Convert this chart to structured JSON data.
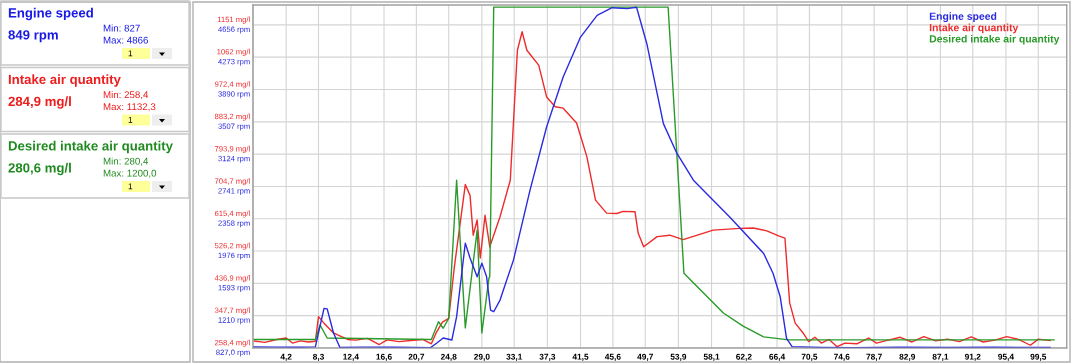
{
  "chart_data": [
    {
      "type": "other",
      "title": "Engine speed",
      "color": "#1a1ae6",
      "annotations": [
        "849 rpm",
        "Min: 827",
        "Max: 4866",
        "1"
      ]
    },
    {
      "type": "other",
      "title": "Intake air quantity",
      "color": "#ee1c1c",
      "annotations": [
        "284,9 mg/l",
        "Min: 258,4",
        "Max: 1132,3",
        "1"
      ]
    },
    {
      "type": "other",
      "title": "Desired intake air quantity",
      "color": "#1f8a1f",
      "annotations": [
        "280,6 mg/l",
        "Min: 280,4",
        "Max: 1200,0",
        "1"
      ]
    },
    {
      "type": "line",
      "legend": "top right",
      "grid": true,
      "xlim": [
        0,
        103.1
      ],
      "ylim": [
        258.4,
        1206
      ],
      "y2lim": [
        827,
        4893
      ],
      "xticks": [
        {
          "value": 4.2,
          "label": "4,2"
        },
        {
          "value": 8.3,
          "label": "8,3"
        },
        {
          "value": 12.4,
          "label": "12,4"
        },
        {
          "value": 16.6,
          "label": "16,6"
        },
        {
          "value": 20.7,
          "label": "20,7"
        },
        {
          "value": 24.8,
          "label": "24,8"
        },
        {
          "value": 29.0,
          "label": "29,0"
        },
        {
          "value": 33.1,
          "label": "33,1"
        },
        {
          "value": 37.3,
          "label": "37,3"
        },
        {
          "value": 41.5,
          "label": "41,5"
        },
        {
          "value": 45.6,
          "label": "45,6"
        },
        {
          "value": 49.7,
          "label": "49,7"
        },
        {
          "value": 53.9,
          "label": "53,9"
        },
        {
          "value": 58.1,
          "label": "58,1"
        },
        {
          "value": 62.2,
          "label": "62,2"
        },
        {
          "value": 66.4,
          "label": "66,4"
        },
        {
          "value": 70.5,
          "label": "70,5"
        },
        {
          "value": 74.6,
          "label": "74,6"
        },
        {
          "value": 78.7,
          "label": "78,7"
        },
        {
          "value": 82.9,
          "label": "82,9"
        },
        {
          "value": 87.1,
          "label": "87,1"
        },
        {
          "value": 91.2,
          "label": "91,2"
        },
        {
          "value": 95.4,
          "label": "95,4"
        },
        {
          "value": 99.5,
          "label": "99,5"
        }
      ],
      "yticks": [
        {
          "value": 258.4,
          "label": "258,4 mg/l"
        },
        {
          "value": 347.7,
          "label": "347,7 mg/l"
        },
        {
          "value": 436.9,
          "label": "436,9 mg/l"
        },
        {
          "value": 526.2,
          "label": "526,2 mg/l"
        },
        {
          "value": 615.4,
          "label": "615,4 mg/l"
        },
        {
          "value": 704.7,
          "label": "704,7 mg/l"
        },
        {
          "value": 793.9,
          "label": "793,9 mg/l"
        },
        {
          "value": 883.2,
          "label": "883,2 mg/l"
        },
        {
          "value": 972.4,
          "label": "972,4 mg/l"
        },
        {
          "value": 1062,
          "label": "1062 mg/l"
        },
        {
          "value": 1151,
          "label": "1151 mg/l"
        }
      ],
      "y2ticks": [
        {
          "value": 827.0,
          "label": "827,0 rpm"
        },
        {
          "value": 1210,
          "label": "1210 rpm"
        },
        {
          "value": 1593,
          "label": "1593 rpm"
        },
        {
          "value": 1976,
          "label": "1976 rpm"
        },
        {
          "value": 2358,
          "label": "2358 rpm"
        },
        {
          "value": 2741,
          "label": "2741 rpm"
        },
        {
          "value": 3124,
          "label": "3124 rpm"
        },
        {
          "value": 3507,
          "label": "3507 rpm"
        },
        {
          "value": 3890,
          "label": "3890 rpm"
        },
        {
          "value": 4273,
          "label": "4273 rpm"
        },
        {
          "value": 4656,
          "label": "4656 rpm"
        }
      ],
      "series": [
        {
          "name": "Engine speed",
          "color": "#2a2ae0",
          "axis": "y2",
          "x": [
            0,
            3,
            6,
            7.9,
            9.0,
            9.4,
            10.2,
            11.0,
            14,
            18,
            22.5,
            23.3,
            24.1,
            25.2,
            25.8,
            26.9,
            27.5,
            28.4,
            29.0,
            29.6,
            30.1,
            30.5,
            31.3,
            33.0,
            35.1,
            37.2,
            39.3,
            41.5,
            43.6,
            45.5,
            47.4,
            48.6,
            49.9,
            52.0,
            53.7,
            55.8,
            60.4,
            64.7,
            65.9,
            66.8,
            67.6,
            68.3,
            72,
            76,
            82,
            88,
            94,
            101
          ],
          "values": [
            840,
            838,
            836,
            840,
            1297,
            1290,
            1005,
            835,
            838,
            836,
            832,
            886,
            945,
            922,
            1198,
            2070,
            1893,
            1671,
            1833,
            1671,
            1277,
            1257,
            1395,
            1869,
            2698,
            3447,
            4039,
            4513,
            4770,
            4861,
            4850,
            4866,
            4434,
            3487,
            3136,
            2816,
            2381,
            1948,
            1711,
            1434,
            942,
            843,
            835,
            832,
            836,
            834,
            836,
            833
          ]
        },
        {
          "name": "Intake air quantity",
          "color": "#ee2a2a",
          "x": [
            0,
            1.5,
            3,
            4.2,
            5,
            6,
            7,
            7.9,
            8.3,
            9.0,
            10.2,
            11.0,
            12,
            13,
            14.5,
            16,
            17,
            18.5,
            20,
            21.5,
            22.6,
            23.2,
            24.0,
            24.8,
            25.5,
            26.9,
            27.5,
            27.9,
            28.4,
            28.8,
            29.4,
            30.0,
            31.3,
            32.6,
            33.5,
            34.1,
            34.7,
            36.2,
            37.2,
            38.3,
            39.3,
            41.0,
            42.3,
            43.4,
            44.8,
            46.1,
            46.9,
            48.4,
            48.8,
            49.5,
            51.2,
            52.8,
            54.5,
            58.3,
            61.7,
            63.4,
            65.1,
            66.6,
            67.4,
            68.0,
            68.7,
            69.7,
            70.4,
            71.2,
            72,
            73,
            74,
            75,
            76.5,
            78,
            79,
            80.5,
            82,
            83.5,
            85,
            86.5,
            88,
            89.5,
            91,
            92.5,
            94,
            95.5,
            97,
            98.5,
            99.5,
            101
          ],
          "values": [
            278,
            274,
            282,
            286,
            272,
            278,
            275,
            277,
            345,
            327,
            300,
            292,
            282,
            280,
            285,
            268,
            281,
            276,
            279,
            282,
            270,
            300,
            330,
            340,
            480,
            710,
            680,
            570,
            612,
            507,
            625,
            538,
            621,
            722,
            1081,
            1132,
            1081,
            1040,
            952,
            925,
            921,
            880,
            787,
            667,
            631,
            630,
            636,
            635,
            576,
            538,
            566,
            570,
            558,
            584,
            589,
            590,
            582,
            568,
            562,
            383,
            327,
            300,
            276,
            288,
            272,
            282,
            262,
            272,
            270,
            286,
            272,
            280,
            288,
            275,
            290,
            278,
            283,
            276,
            289,
            275,
            280,
            290,
            282,
            266,
            283,
            279
          ]
        },
        {
          "name": "Desired intake air quantity",
          "color": "#2a9a2a",
          "x": [
            0,
            7.9,
            8.5,
            9.4,
            22.6,
            23.5,
            24.1,
            24.8,
            25.8,
            26.9,
            28.4,
            29.0,
            29.9,
            30.0,
            30.5,
            52.6,
            54.6,
            59.6,
            62.1,
            64.7,
            67.9,
            101.5
          ],
          "values": [
            282,
            282,
            322,
            286,
            282,
            331,
            313,
            340,
            722,
            314,
            584,
            300,
            452,
            455,
            1200,
            1200,
            465,
            355,
            319,
            289,
            281,
            281
          ]
        }
      ]
    }
  ]
}
